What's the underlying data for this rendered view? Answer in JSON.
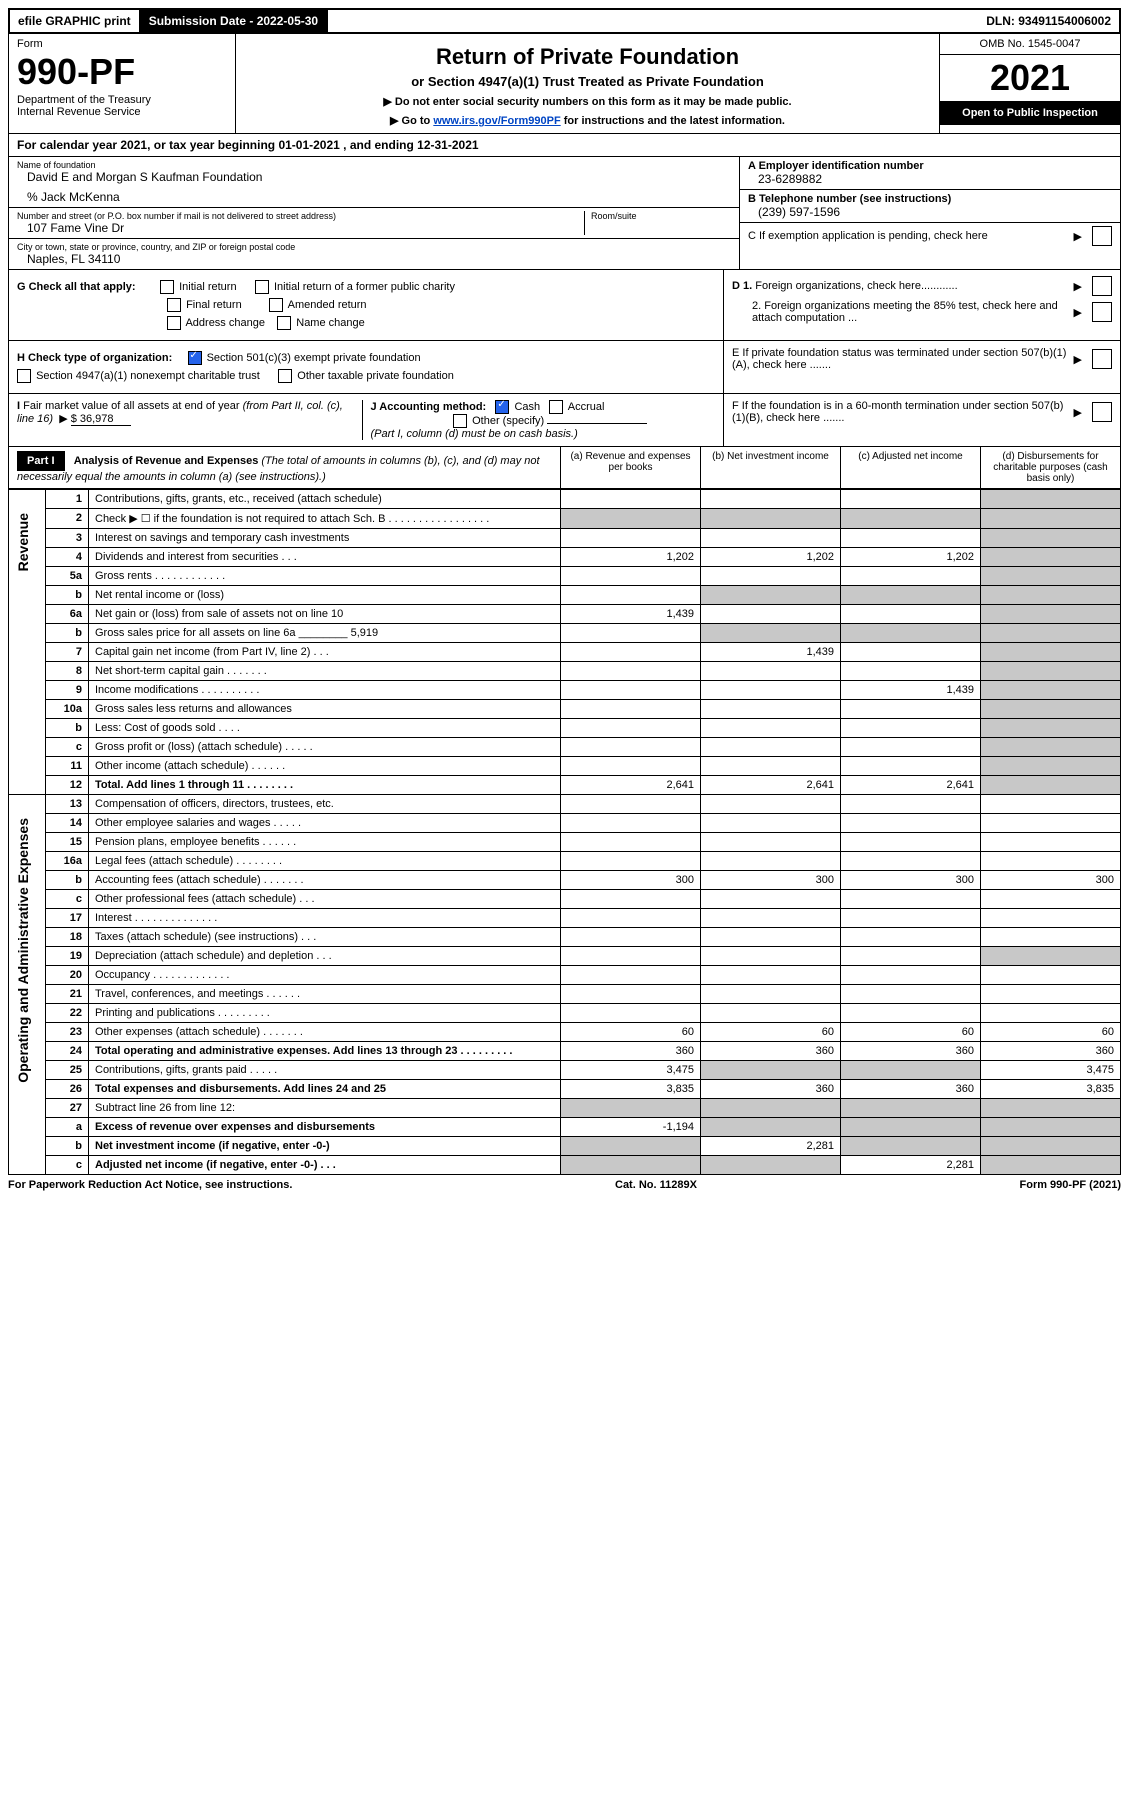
{
  "topbar": {
    "efile": "efile GRAPHIC print",
    "sub_label": "Submission Date - 2022-05-30",
    "dln": "DLN: 93491154006002"
  },
  "header": {
    "form_word": "Form",
    "form_no": "990-PF",
    "dept": "Department of the Treasury",
    "irs": "Internal Revenue Service",
    "title": "Return of Private Foundation",
    "subtitle": "or Section 4947(a)(1) Trust Treated as Private Foundation",
    "note1": "▶ Do not enter social security numbers on this form as it may be made public.",
    "note2_pre": "▶ Go to ",
    "note2_link": "www.irs.gov/Form990PF",
    "note2_post": " for instructions and the latest information.",
    "omb": "OMB No. 1545-0047",
    "year": "2021",
    "open": "Open to Public Inspection"
  },
  "calendar": "For calendar year 2021, or tax year beginning 01-01-2021                         , and ending 12-31-2021",
  "info": {
    "name_label": "Name of foundation",
    "name": "David E and Morgan S Kaufman Foundation",
    "care_of": "% Jack McKenna",
    "addr_label": "Number and street (or P.O. box number if mail is not delivered to street address)",
    "addr": "107 Fame Vine Dr",
    "room_label": "Room/suite",
    "city_label": "City or town, state or province, country, and ZIP or foreign postal code",
    "city": "Naples, FL  34110",
    "a_label": "A Employer identification number",
    "a_val": "23-6289882",
    "b_label": "B Telephone number (see instructions)",
    "b_val": "(239) 597-1596",
    "c_label": "C If exemption application is pending, check here",
    "d1": "D 1. Foreign organizations, check here............",
    "d2": "2. Foreign organizations meeting the 85% test, check here and attach computation ...",
    "e": "E  If private foundation status was terminated under section 507(b)(1)(A), check here .......",
    "f": "F  If the foundation is in a 60-month termination under section 507(b)(1)(B), check here .......",
    "g": "G Check all that apply:",
    "g_initial": "Initial return",
    "g_initial_former": "Initial return of a former public charity",
    "g_final": "Final return",
    "g_amended": "Amended return",
    "g_address": "Address change",
    "g_name": "Name change",
    "h": "H Check type of organization:",
    "h_501c3": "Section 501(c)(3) exempt private foundation",
    "h_4947": "Section 4947(a)(1) nonexempt charitable trust",
    "h_other_tax": "Other taxable private foundation",
    "i": "I Fair market value of all assets at end of year (from Part II, col. (c), line 16)",
    "i_val": "$  36,978",
    "j": "J Accounting method:",
    "j_cash": "Cash",
    "j_accrual": "Accrual",
    "j_other": "Other (specify)",
    "j_note": "(Part I, column (d) must be on cash basis.)"
  },
  "part1": {
    "label": "Part I",
    "title": "Analysis of Revenue and Expenses",
    "note": " (The total of amounts in columns (b), (c), and (d) may not necessarily equal the amounts in column (a) (see instructions).)",
    "col_a": "(a)   Revenue and expenses per books",
    "col_b": "(b)   Net investment income",
    "col_c": "(c)   Adjusted net income",
    "col_d": "(d)  Disbursements for charitable purposes (cash basis only)"
  },
  "sections": {
    "revenue": "Revenue",
    "expenses": "Operating and Administrative Expenses"
  },
  "rows": [
    {
      "n": "1",
      "d": "Contributions, gifts, grants, etc., received (attach schedule)"
    },
    {
      "n": "2",
      "d": "Check ▶ ☐ if the foundation is not required to attach Sch. B   .  .  .  .  .  .  .  .  .  .  .  .  .  .  .  .  ."
    },
    {
      "n": "3",
      "d": "Interest on savings and temporary cash investments"
    },
    {
      "n": "4",
      "d": "Dividends and interest from securities   .  .  .",
      "a": "1,202",
      "b": "1,202",
      "c": "1,202"
    },
    {
      "n": "5a",
      "d": "Gross rents   .  .  .  .  .  .  .  .  .  .  .  ."
    },
    {
      "n": "b",
      "d": "Net rental income or (loss)"
    },
    {
      "n": "6a",
      "d": "Net gain or (loss) from sale of assets not on line 10",
      "a": "1,439"
    },
    {
      "n": "b",
      "d": "Gross sales price for all assets on line 6a ________ 5,919"
    },
    {
      "n": "7",
      "d": "Capital gain net income (from Part IV, line 2)   .  .  .",
      "b": "1,439"
    },
    {
      "n": "8",
      "d": "Net short-term capital gain   .  .  .  .  .  .  ."
    },
    {
      "n": "9",
      "d": "Income modifications .  .  .  .  .  .  .  .  .  .",
      "c": "1,439"
    },
    {
      "n": "10a",
      "d": "Gross sales less returns and allowances"
    },
    {
      "n": "b",
      "d": "Less: Cost of goods sold   .  .  .  ."
    },
    {
      "n": "c",
      "d": "Gross profit or (loss) (attach schedule)   .  .  .  .  ."
    },
    {
      "n": "11",
      "d": "Other income (attach schedule)   .  .  .  .  .  ."
    },
    {
      "n": "12",
      "d": "Total. Add lines 1 through 11   .  .  .  .  .  .  .  .",
      "a": "2,641",
      "b": "2,641",
      "c": "2,641",
      "bold": true
    }
  ],
  "exp_rows": [
    {
      "n": "13",
      "d": "Compensation of officers, directors, trustees, etc."
    },
    {
      "n": "14",
      "d": "Other employee salaries and wages   .  .  .  .  ."
    },
    {
      "n": "15",
      "d": "Pension plans, employee benefits .  .  .  .  .  ."
    },
    {
      "n": "16a",
      "d": "Legal fees (attach schedule) .  .  .  .  .  .  .  ."
    },
    {
      "n": "b",
      "d": "Accounting fees (attach schedule) .  .  .  .  .  .  .",
      "a": "300",
      "b": "300",
      "c": "300",
      "dd": "300"
    },
    {
      "n": "c",
      "d": "Other professional fees (attach schedule)   .  .  ."
    },
    {
      "n": "17",
      "d": "Interest .  .  .  .  .  .  .  .  .  .  .  .  .  ."
    },
    {
      "n": "18",
      "d": "Taxes (attach schedule) (see instructions)   .  .  ."
    },
    {
      "n": "19",
      "d": "Depreciation (attach schedule) and depletion   .  .  .",
      "shade_d": true
    },
    {
      "n": "20",
      "d": "Occupancy .  .  .  .  .  .  .  .  .  .  .  .  ."
    },
    {
      "n": "21",
      "d": "Travel, conferences, and meetings .  .  .  .  .  ."
    },
    {
      "n": "22",
      "d": "Printing and publications .  .  .  .  .  .  .  .  ."
    },
    {
      "n": "23",
      "d": "Other expenses (attach schedule) .  .  .  .  .  .  .",
      "a": "60",
      "b": "60",
      "c": "60",
      "dd": "60"
    },
    {
      "n": "24",
      "d": "Total operating and administrative expenses. Add lines 13 through 23   .  .  .  .  .  .  .  .  .",
      "a": "360",
      "b": "360",
      "c": "360",
      "dd": "360",
      "bold": true
    },
    {
      "n": "25",
      "d": "Contributions, gifts, grants paid   .  .  .  .  .",
      "a": "3,475",
      "dd": "3,475",
      "shade_bc": true
    },
    {
      "n": "26",
      "d": "Total expenses and disbursements. Add lines 24 and 25",
      "a": "3,835",
      "b": "360",
      "c": "360",
      "dd": "3,835",
      "bold": true
    },
    {
      "n": "27",
      "d": "Subtract line 26 from line 12:",
      "shade_all": true
    },
    {
      "n": "a",
      "d": "Excess of revenue over expenses and disbursements",
      "a": "-1,194",
      "shade_bcd": true,
      "bold": true
    },
    {
      "n": "b",
      "d": "Net investment income (if negative, enter -0-)",
      "b": "2,281",
      "shade_a": true,
      "shade_cd": true,
      "bold": true
    },
    {
      "n": "c",
      "d": "Adjusted net income (if negative, enter -0-)   .  .  .",
      "c": "2,281",
      "shade_a": true,
      "shade_b": true,
      "shade_d": true,
      "bold": true
    }
  ],
  "footer": {
    "left": "For Paperwork Reduction Act Notice, see instructions.",
    "mid": "Cat. No. 11289X",
    "right": "Form 990-PF (2021)"
  }
}
